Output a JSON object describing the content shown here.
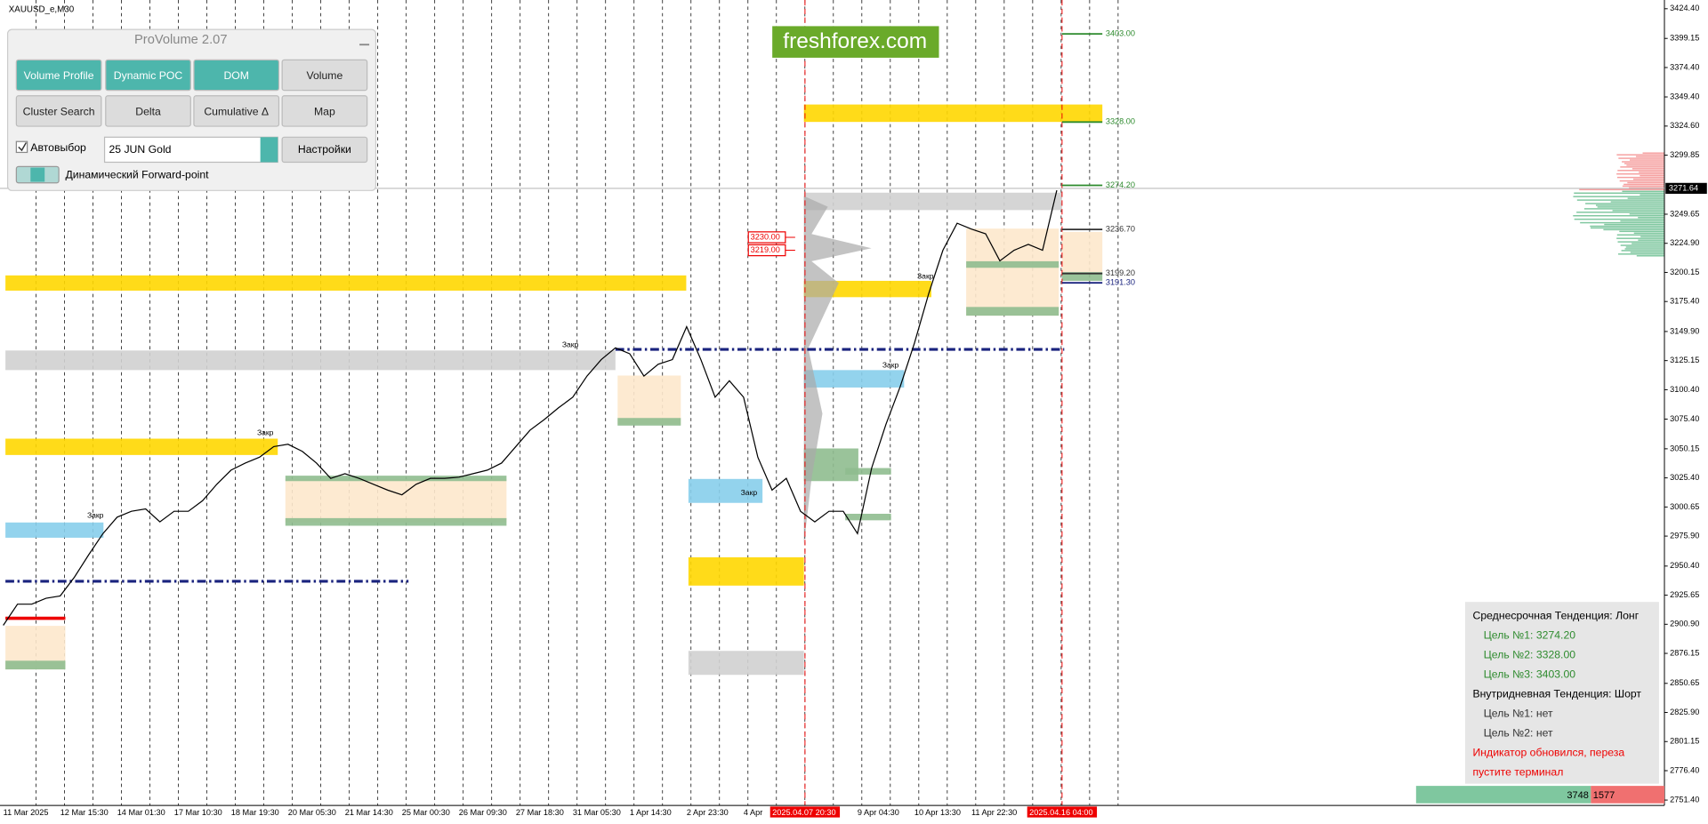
{
  "window_title": "XAUUSD_e,M30",
  "logo": "freshforex.com",
  "panel": {
    "title": "ProVolume 2.07",
    "buttons": [
      "Volume Profile",
      "Dynamic POC",
      "DOM",
      "Volume",
      "Cluster Search",
      "Delta",
      "Cumulative Δ",
      "Map"
    ],
    "autoselect": "Автовыбор",
    "contract": "25 JUN Gold",
    "settings": "Настройки",
    "forward_point": "Динамический Forward-point"
  },
  "chart_data": {
    "type": "line",
    "categories": [
      "11 Mar 2025",
      null,
      null,
      null,
      "12 Mar 15:30",
      null,
      null,
      null,
      "14 Mar 01:30",
      null,
      null,
      null,
      "17 Mar 10:30",
      null,
      null,
      null,
      "18 Mar 19:30",
      null,
      null,
      null,
      "20 Mar 05:30",
      null,
      null,
      null,
      "21 Mar 14:30",
      null,
      null,
      null,
      "25 Mar 00:30",
      null,
      null,
      null,
      "26 Mar 09:30",
      null,
      null,
      null,
      "27 Mar 18:30",
      null,
      null,
      null,
      "31 Mar 05:30",
      null,
      null,
      null,
      "1 Apr 14:30",
      null,
      null,
      null,
      "2 Apr 23:30",
      null,
      null,
      null,
      "4 Apr",
      null,
      null,
      null,
      null,
      null,
      null,
      null,
      "9 Apr 04:30",
      null,
      null,
      null,
      "10 Apr 13:30",
      null,
      null,
      null,
      "11 Apr 22:30",
      null,
      null,
      null,
      null,
      null,
      null
    ],
    "values": [
      2900,
      2918,
      2918,
      2923,
      2925,
      2941,
      2960,
      2978,
      2992,
      2997,
      2999,
      2988,
      2997,
      2997,
      3006,
      3020,
      3032,
      3038,
      3043,
      3052,
      3054,
      3048,
      3038,
      3025,
      3029,
      3025,
      3020,
      3015,
      3011,
      3020,
      3025,
      3025,
      3026,
      3029,
      3032,
      3038,
      3052,
      3066,
      3075,
      3085,
      3094,
      3112,
      3126,
      3136,
      3131,
      3112,
      3122,
      3126,
      3154,
      3126,
      3094,
      3108,
      3094,
      3043,
      3015,
      3025,
      2997,
      2988,
      2997,
      2997,
      2978,
      3034,
      3071,
      3103,
      3140,
      3182,
      3219,
      3242,
      3237,
      3233,
      3210,
      3219,
      3224,
      3219,
      3270
    ],
    "color": "#000000",
    "ylim": [
      2746.8,
      3431.8
    ],
    "yticks": [
      {
        "value": 3424.4,
        "label": "3424.40"
      },
      {
        "value": 3399.15,
        "label": "3399.15"
      },
      {
        "value": 3374.4,
        "label": "3374.40"
      },
      {
        "value": 3349.4,
        "label": "3349.40"
      },
      {
        "value": 3324.6,
        "label": "3324.60"
      },
      {
        "value": 3299.85,
        "label": "3299.85"
      },
      {
        "value": 3249.65,
        "label": "3249.65"
      },
      {
        "value": 3224.9,
        "label": "3224.90"
      },
      {
        "value": 3200.15,
        "label": "3200.15"
      },
      {
        "value": 3175.4,
        "label": "3175.40"
      },
      {
        "value": 3149.9,
        "label": "3149.90"
      },
      {
        "value": 3125.15,
        "label": "3125.15"
      },
      {
        "value": 3100.4,
        "label": "3100.40"
      },
      {
        "value": 3075.4,
        "label": "3075.40"
      },
      {
        "value": 3050.15,
        "label": "3050.15"
      },
      {
        "value": 3025.4,
        "label": "3025.40"
      },
      {
        "value": 3000.65,
        "label": "3000.65"
      },
      {
        "value": 2975.9,
        "label": "2975.90"
      },
      {
        "value": 2950.4,
        "label": "2950.40"
      },
      {
        "value": 2925.65,
        "label": "2925.65"
      },
      {
        "value": 2900.9,
        "label": "2900.90"
      },
      {
        "value": 2876.15,
        "label": "2876.15"
      },
      {
        "value": 2850.65,
        "label": "2850.65"
      },
      {
        "value": 2825.9,
        "label": "2825.90"
      },
      {
        "value": 2801.15,
        "label": "2801.15"
      },
      {
        "value": 2776.4,
        "label": "2776.40"
      },
      {
        "value": 2751.4,
        "label": "2751.40"
      }
    ],
    "current_price": {
      "value": 3271.64,
      "label": "3271.64"
    },
    "cursor_labels": [
      "2025.04.07 20:30",
      "2025.04.16 04:00"
    ],
    "levels": [
      {
        "value": 3403.0,
        "label": "3403.00",
        "color": "#2e8b2e"
      },
      {
        "value": 3328.0,
        "label": "3328.00",
        "color": "#2e8b2e"
      },
      {
        "value": 3274.2,
        "label": "3274.20",
        "color": "#2e8b2e"
      },
      {
        "value": 3236.7,
        "label": "3236.70",
        "color": "#333333"
      },
      {
        "value": 3199.2,
        "label": "3199.20",
        "color": "#333333"
      },
      {
        "value": 3191.3,
        "label": "3191.30",
        "color": "#1a237e"
      }
    ],
    "red_levels": [
      {
        "value": 3230.0,
        "label": "3230.00"
      },
      {
        "value": 3219.0,
        "label": "3219.00"
      }
    ],
    "annotations": [
      "Закр",
      "Закр",
      "Закр",
      "Закр",
      "Закр",
      "Закр"
    ]
  },
  "info_box": {
    "mid_trend": "Среднесрочная Тенденция: Лонг",
    "mid_targets": [
      "Цель №1: 3274.20",
      "Цель №2: 3328.00",
      "Цель №3: 3403.00"
    ],
    "intraday_trend": "Внутридневная Тенденция: Шорт",
    "intraday_targets": [
      "Цель №1: нет",
      "Цель №2: нет"
    ],
    "warning": [
      "Индикатор обновился, переза",
      "пустите терминал"
    ]
  },
  "volume_bar": {
    "buy": 3748,
    "sell": 1577
  }
}
